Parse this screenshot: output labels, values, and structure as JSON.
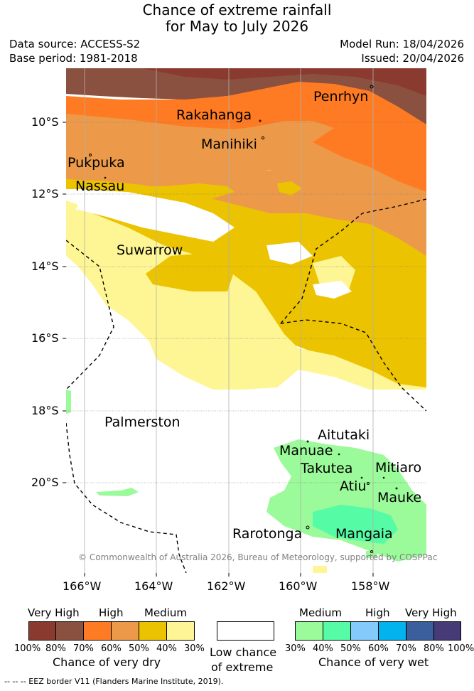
{
  "title": {
    "line1": "Chance of extreme rainfall",
    "line2": "for May to July 2026"
  },
  "meta": {
    "data_source": "Data source: ACCESS-S2",
    "base_period": "Base period: 1981-2018",
    "model_run": "Model Run: 18/04/2026",
    "issued": "Issued: 20/04/2026"
  },
  "map": {
    "lat_labels": [
      "10°S",
      "12°S",
      "14°S",
      "16°S",
      "18°S",
      "20°S"
    ],
    "lon_labels": [
      "166°W",
      "164°W",
      "162°W",
      "160°W",
      "158°W"
    ],
    "places": {
      "penrhyn": "Penrhyn",
      "rakahanga": "Rakahanga",
      "manihiki": "Manihiki",
      "pukpuka": "Pukpuka",
      "nassau": "Nassau",
      "suwarrow": "Suwarrow",
      "palmerston": "Palmerston",
      "aitutaki": "Aitutaki",
      "manuae": "Manuae",
      "takutea": "Takutea",
      "mitiaro": "Mitiaro",
      "atiu": "Atiu",
      "mauke": "Mauke",
      "rarotonga": "Rarotonga",
      "mangaia": "Mangaia"
    },
    "credit": "© Commonwealth of Australia 2026, Bureau of Meteorology, supported by COSPPac",
    "colors": {
      "dry_100_80": "#8b3a2f",
      "dry_80_70": "#8b5140",
      "dry_70_60": "#fe7b23",
      "dry_60_50": "#ec9a4a",
      "dry_50_40": "#ecc300",
      "dry_40_30": "#fef594",
      "wet_30_40": "#9bfa99",
      "wet_40_50": "#55fba5",
      "wet_50_60": "#84cbfc",
      "wet_60_70": "#02b3ee",
      "wet_70_80": "#3b5e9c",
      "wet_80_100": "#463b77"
    }
  },
  "legend": {
    "dry_headers": [
      "Very High",
      "High",
      "Medium"
    ],
    "wet_headers": [
      "Medium",
      "High",
      "Very High"
    ],
    "dry_percents": [
      "100%",
      "80%",
      "70%",
      "60%",
      "50%",
      "40%",
      "30%"
    ],
    "wet_percents": [
      "30%",
      "40%",
      "50%",
      "60%",
      "70%",
      "80%",
      "100%"
    ],
    "dry_caption": "Chance of very dry",
    "low_caption_1": "Low chance",
    "low_caption_2": "of extreme",
    "wet_caption": "Chance of very wet",
    "eez_note": "-- -- -- EEZ border V11 (Flanders Marine Institute, 2019)."
  }
}
